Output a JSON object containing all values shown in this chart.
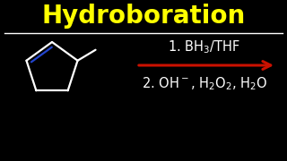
{
  "background_color": "#000000",
  "title": "Hydroboration",
  "title_color": "#FFFF00",
  "title_fontsize": 20,
  "separator_color": "#FFFFFF",
  "line1_text": "1. BH$_3$/THF",
  "line2_text": "2. OH$^-$, H$_2$O$_2$, H$_2$O",
  "reaction_text_color": "#FFFFFF",
  "reaction_text_fontsize": 10.5,
  "arrow_color": "#CC1100",
  "molecule_color": "#FFFFFF",
  "double_bond_color": "#2244CC",
  "fig_width": 3.2,
  "fig_height": 1.8,
  "dpi": 100
}
